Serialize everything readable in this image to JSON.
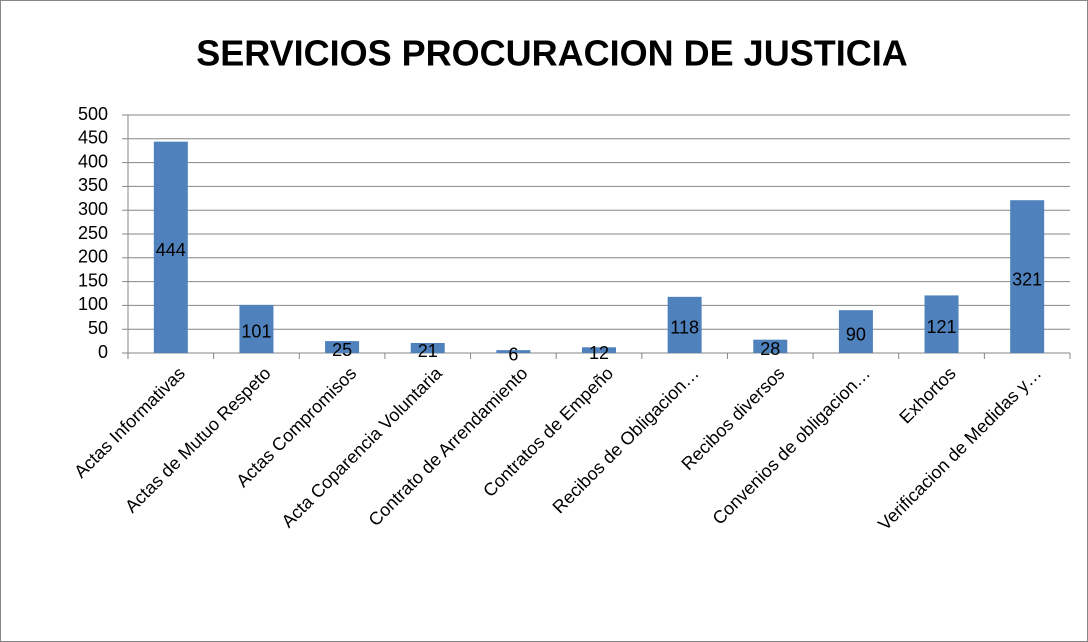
{
  "chart_data": {
    "type": "bar",
    "title": "SERVICIOS PROCURACION DE JUSTICIA",
    "categories": [
      "Actas Informativas",
      "Actas de Mutuo Respeto",
      "Actas Compromisos",
      "Acta Coparencia Voluntaria",
      "Contrato de Arrendamiento",
      "Contratos de Empeño",
      "Recibos de Obligacion…",
      "Recibos diversos",
      "Convenios de obligacion…",
      "Exhortos",
      "Verificacion de Medidas y…"
    ],
    "values": [
      444,
      101,
      25,
      21,
      6,
      12,
      118,
      28,
      90,
      121,
      321
    ],
    "color": "#4f81bd",
    "ylim": [
      0,
      500
    ],
    "yticks": [
      0,
      50,
      100,
      150,
      200,
      250,
      300,
      350,
      400,
      450,
      500
    ],
    "grid": true
  }
}
